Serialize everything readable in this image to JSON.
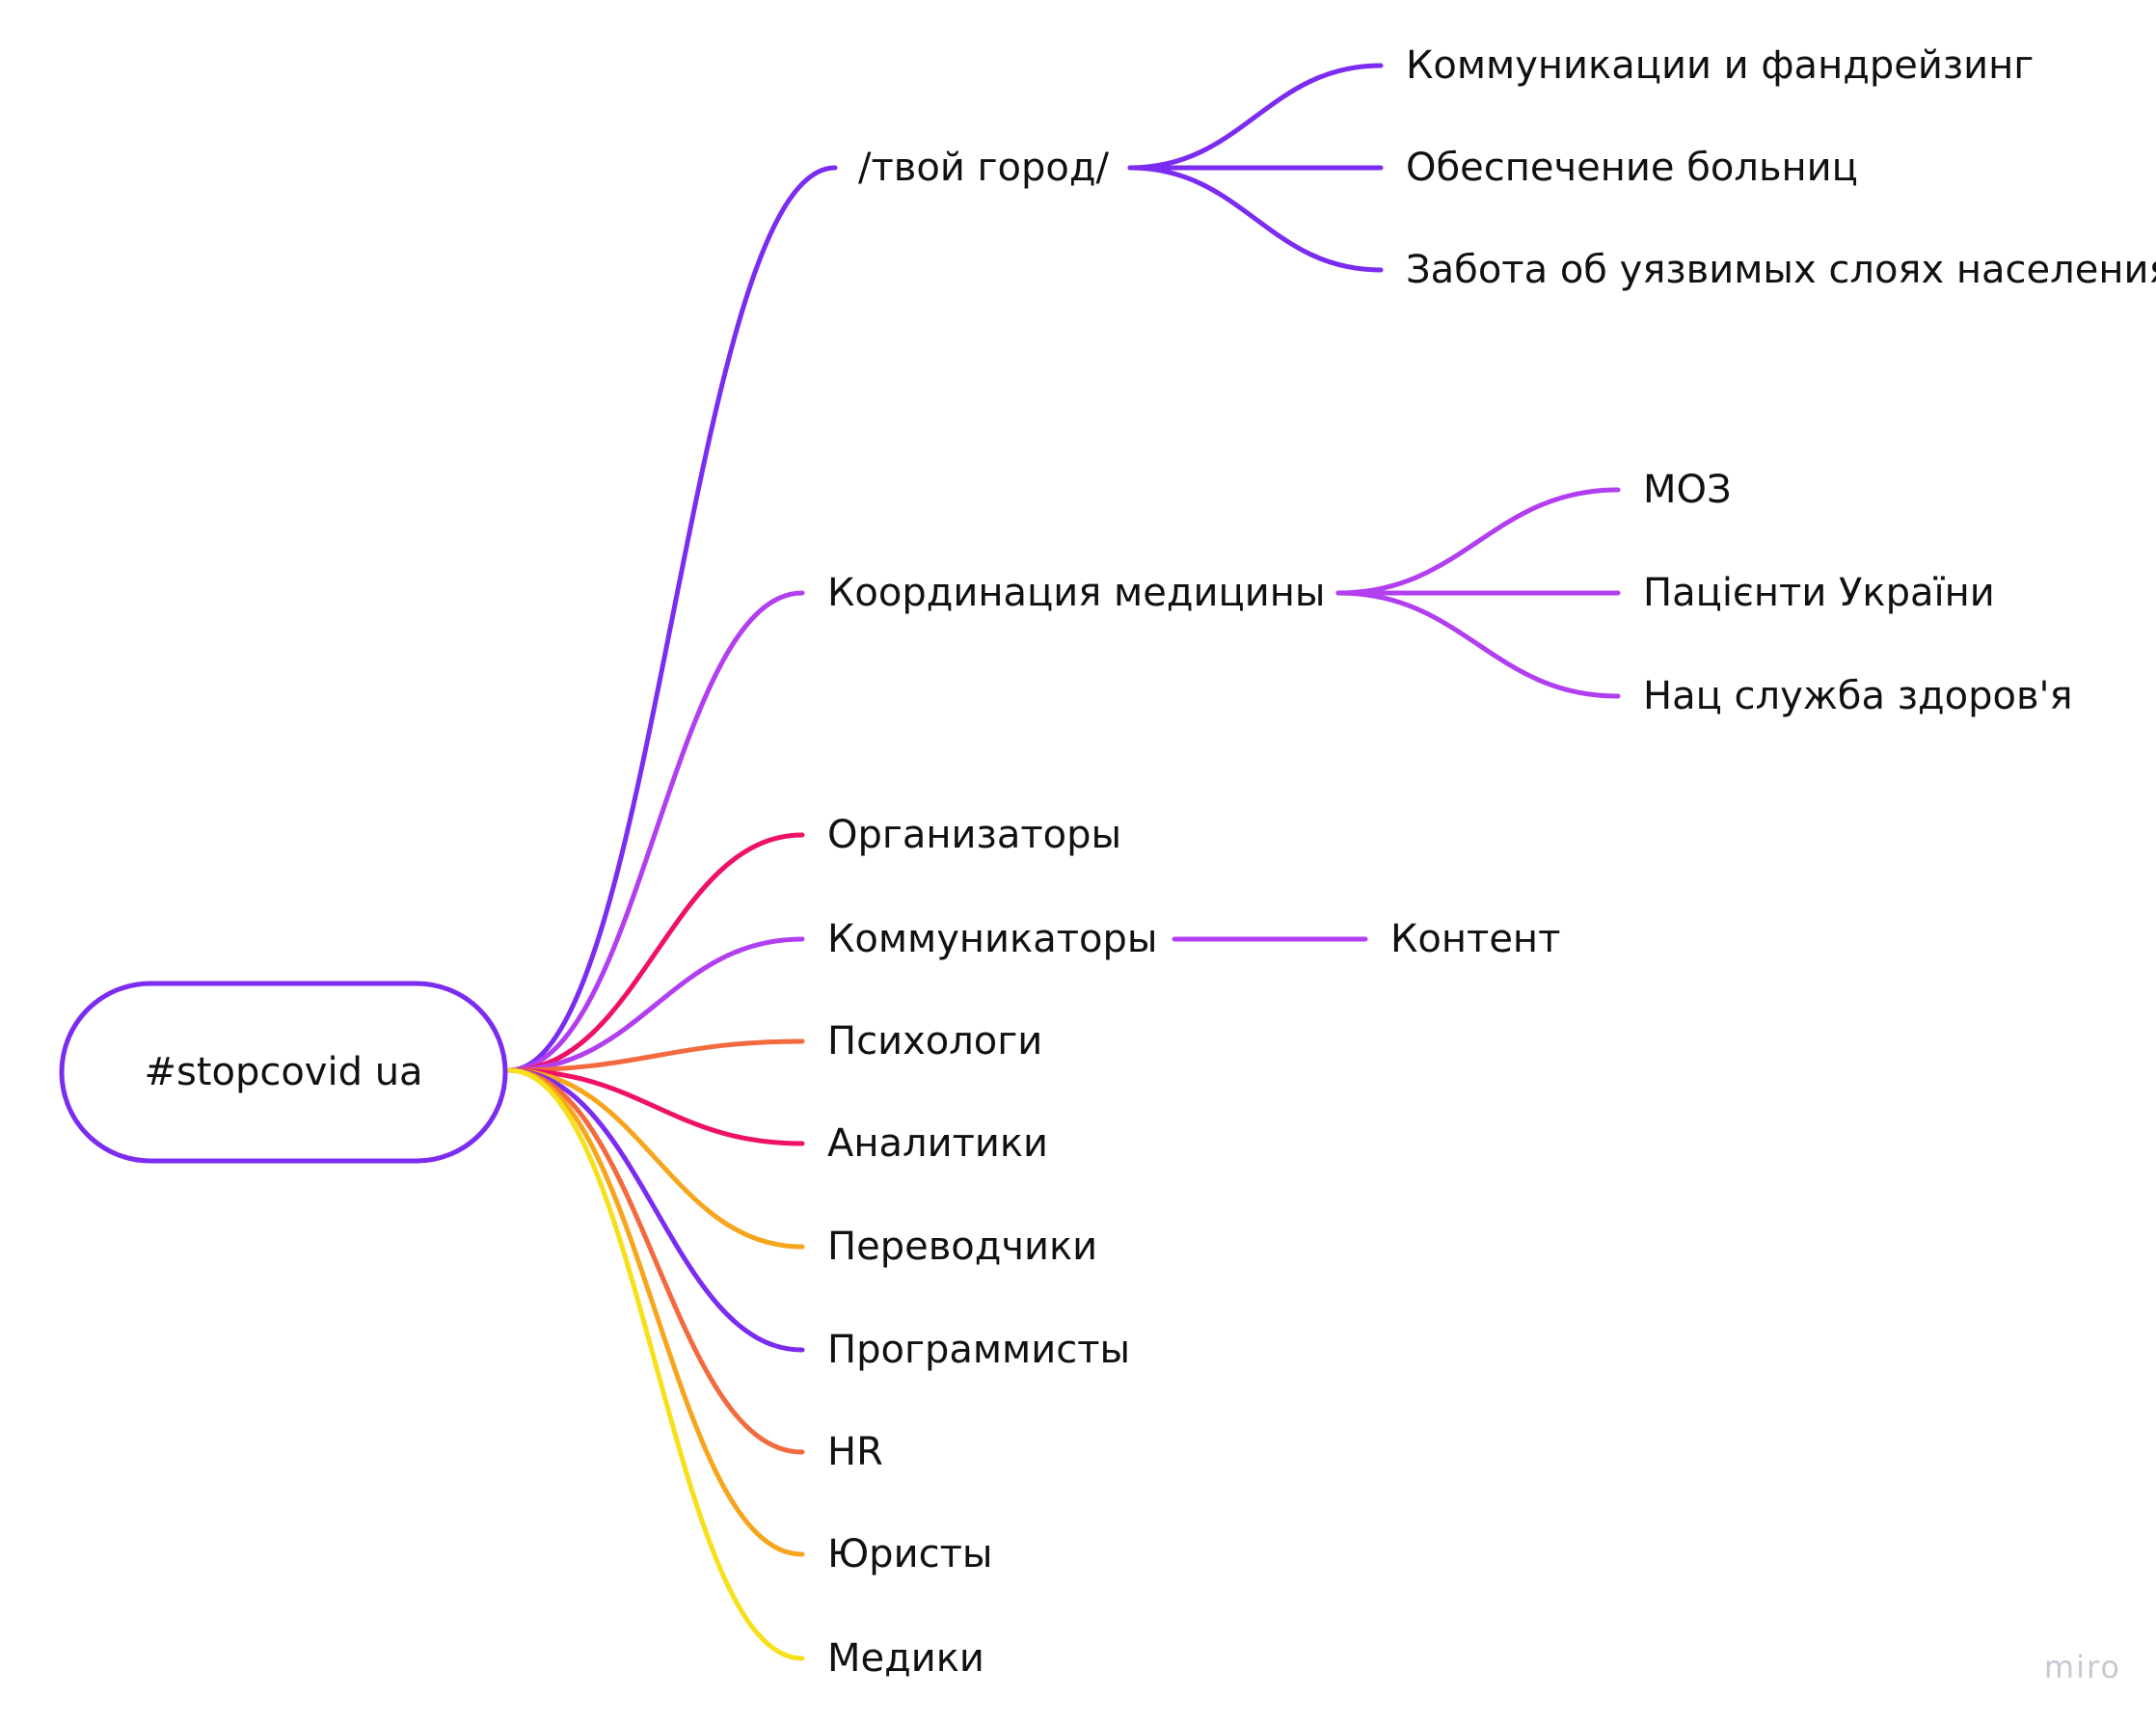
{
  "root": {
    "label": "#stopcovid ua",
    "color": "#7b2cf0"
  },
  "branches": [
    {
      "id": "city",
      "label": "/твой город/",
      "color": "#7b2cf0",
      "children": [
        {
          "label": "Коммуникации и фандрейзинг"
        },
        {
          "label": "Обеспечение больниц"
        },
        {
          "label": "Забота об уязвимых слоях населения"
        }
      ]
    },
    {
      "id": "med-coord",
      "label": "Координация медицины",
      "color": "#b13ff0",
      "children": [
        {
          "label": "МОЗ"
        },
        {
          "label": "Пацієнти України"
        },
        {
          "label": "Нац служба здоров'я"
        }
      ]
    },
    {
      "id": "organizers",
      "label": "Организаторы",
      "color": "#ee1166",
      "children": []
    },
    {
      "id": "communicators",
      "label": "Коммуникаторы",
      "color": "#b13ff0",
      "children": [
        {
          "label": "Контент"
        }
      ]
    },
    {
      "id": "psychologists",
      "label": "Психологи",
      "color": "#f26a3d",
      "children": []
    },
    {
      "id": "analysts",
      "label": "Аналитики",
      "color": "#ee1166",
      "children": []
    },
    {
      "id": "translators",
      "label": "Переводчики",
      "color": "#f7a51d",
      "children": []
    },
    {
      "id": "programmers",
      "label": "Программисты",
      "color": "#7b2cf0",
      "children": []
    },
    {
      "id": "hr",
      "label": "HR",
      "color": "#f26a3d",
      "children": []
    },
    {
      "id": "lawyers",
      "label": "Юристы",
      "color": "#f7a51d",
      "children": []
    },
    {
      "id": "medics",
      "label": "Медики",
      "color": "#f5e01a",
      "children": []
    }
  ],
  "watermark": "miro"
}
